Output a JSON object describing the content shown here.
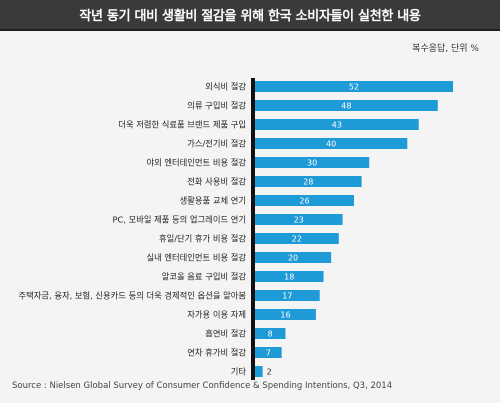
{
  "header": {
    "title": "작년 동기 대비 생활비 절감을 위해 한국 소비자들이 실천한 내용"
  },
  "note": "복수응답, 단위 %",
  "source": "Source : Nielsen Global Survey of Consumer Confidence & Spending Intentions, Q3, 2014",
  "colors": {
    "bar": "#1e9ad6",
    "axis": "#111111",
    "header_bg": "#3a3a3a"
  },
  "chart_data": {
    "type": "bar",
    "orientation": "horizontal",
    "title": "작년 동기 대비 생활비 절감을 위해 한국 소비자들이 실천한 내용",
    "unit": "%",
    "categories": [
      "외식비 절감",
      "의류 구입비 절감",
      "더욱 저렴한 식료품 브랜드 제품 구입",
      "가스/전기비 절감",
      "야외 엔터테인먼트 비용 절감",
      "전화 사용비 절감",
      "생활용품 교체 연기",
      "PC, 모바일 제품 등의 업그레이드 연기",
      "휴일/단기 휴가 비용 절감",
      "실내 엔터테인먼트 비용 절감",
      "알코올 음료 구입비 절감",
      "주택자금, 융자, 보험, 신용카드 등의 더욱 경제적인 옵션을 알아봄",
      "자가용 이용 자제",
      "흡연비 절감",
      "연차 휴가비 절감",
      "기타"
    ],
    "values": [
      52,
      48,
      43,
      40,
      30,
      28,
      26,
      23,
      22,
      20,
      18,
      17,
      16,
      8,
      7,
      2
    ],
    "xlim": [
      0,
      52
    ],
    "grid": false,
    "legend": "none"
  }
}
